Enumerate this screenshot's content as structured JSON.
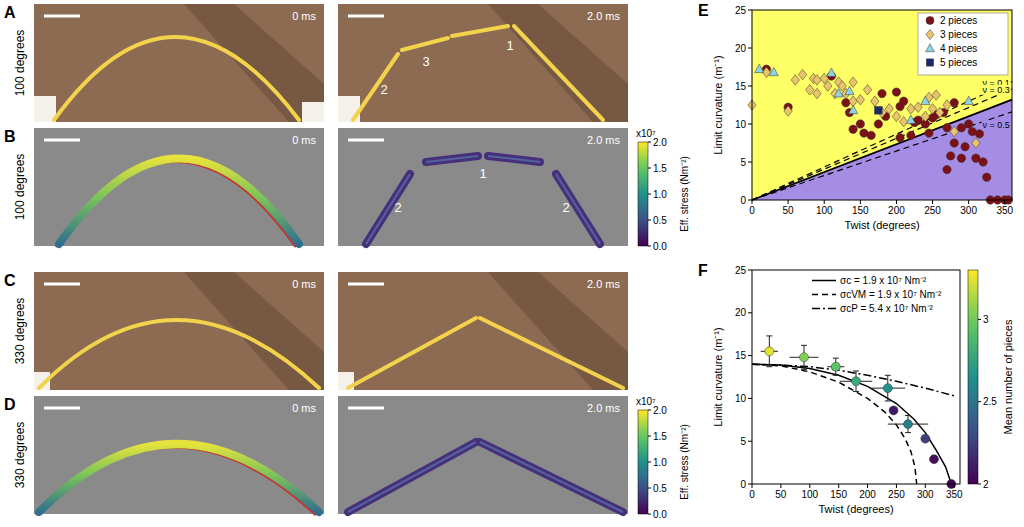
{
  "panels": [
    {
      "letter": "A",
      "row_label": "100 degrees",
      "frames": [
        {
          "time": "0 ms"
        },
        {
          "time": "2.0 ms",
          "labels": [
            "2",
            "3",
            "1"
          ]
        }
      ]
    },
    {
      "letter": "B",
      "row_label": "100 degrees",
      "frames": [
        {
          "time": "0 ms"
        },
        {
          "time": "2.0 ms",
          "labels": [
            "2",
            "1",
            "2"
          ]
        }
      ]
    },
    {
      "letter": "C",
      "row_label": "330 degrees",
      "frames": [
        {
          "time": "0 ms"
        },
        {
          "time": "2.0 ms"
        }
      ]
    },
    {
      "letter": "D",
      "row_label": "330 degrees",
      "frames": [
        {
          "time": "0 ms"
        },
        {
          "time": "2.0 ms"
        }
      ]
    }
  ],
  "stress_colorbar": {
    "label": "Eff. stress (Nm⁻²)",
    "multiplier": "x10⁷",
    "range": [
      0,
      2
    ],
    "ticks": [
      {
        "value": 0,
        "label": "0.0"
      },
      0.5,
      {
        "value": 1,
        "label": "1.0"
      },
      1.5,
      {
        "value": 2,
        "label": "2.0"
      }
    ]
  },
  "chart_data": [
    {
      "type": "scatter",
      "letter": "E",
      "x_label": "Twist (degrees)",
      "y_label": "Limit curvature (m⁻¹)",
      "xlim": [
        0,
        360
      ],
      "ylim": [
        0,
        25
      ],
      "xticks": [
        0,
        50,
        100,
        150,
        200,
        250,
        300,
        350
      ],
      "yticks": [
        0,
        5,
        10,
        15,
        20,
        25
      ],
      "legend": "upper right",
      "series": [
        {
          "name": "2 pieces",
          "color": "#7b1016",
          "marker": "circle",
          "x": [
            20,
            50,
            110,
            130,
            135,
            140,
            150,
            155,
            165,
            175,
            180,
            185,
            200,
            205,
            205,
            210,
            220,
            225,
            230,
            240,
            245,
            250,
            255,
            265,
            270,
            270,
            275,
            280,
            280,
            290,
            290,
            295,
            300,
            305,
            310,
            315,
            320,
            325,
            330,
            340,
            350,
            355
          ],
          "values": [
            17.2,
            12.2,
            16.3,
            12.8,
            11.5,
            9.3,
            10,
            8.8,
            8.5,
            10,
            14,
            11,
            14.2,
            12.3,
            8.2,
            13,
            8.5,
            10.2,
            10.5,
            10,
            8.8,
            10.8,
            11.2,
            11.5,
            9.5,
            4,
            5.8,
            12.8,
            7.5,
            9.5,
            5.5,
            7,
            10,
            9,
            5.5,
            8.7,
            5,
            3,
            0,
            0,
            0,
            0
          ]
        },
        {
          "name": "3 pieces",
          "color": "#e9c46a",
          "marker": "diamond",
          "x": [
            0,
            20,
            50,
            60,
            70,
            80,
            85,
            90,
            90,
            100,
            105,
            115,
            120,
            125,
            130,
            140,
            140,
            150,
            160,
            170,
            180,
            190,
            200,
            210,
            220,
            230,
            240,
            245,
            250,
            255,
            260,
            270,
            280,
            310
          ],
          "values": [
            12.5,
            16.8,
            11.7,
            15.8,
            16.5,
            14.5,
            16,
            15.8,
            14,
            16,
            15,
            14,
            15.5,
            15,
            14,
            15.5,
            13,
            13.2,
            14.5,
            13,
            11.5,
            12,
            11,
            10.3,
            12,
            12.2,
            11,
            13.5,
            12,
            13.8,
            11.5,
            12.5,
            9,
            7.5
          ]
        },
        {
          "name": "4 pieces",
          "color": "#8fd3e3",
          "marker": "triangle",
          "x": [
            10,
            30,
            110,
            120,
            135,
            140,
            220,
            240,
            300
          ],
          "values": [
            17.2,
            16.8,
            16.7,
            14,
            14.3,
            11.8,
            10.5,
            13,
            13
          ]
        },
        {
          "name": "5 pieces",
          "color": "#1b2a6b",
          "marker": "square",
          "x": [
            175
          ],
          "values": [
            11.8
          ]
        }
      ],
      "lines": [
        {
          "label": "ν = 0.1",
          "line_style": "dashed",
          "x": [
            0,
            360
          ],
          "values": [
            0,
            15.6
          ]
        },
        {
          "label": "ν = 0.3",
          "line_style": "dashed",
          "x": [
            0,
            360
          ],
          "values": [
            0,
            14.6
          ]
        },
        {
          "line_style": "solid",
          "x": [
            0,
            360
          ],
          "values": [
            0,
            13.2
          ]
        },
        {
          "label": "ν = 0.5",
          "line_style": "dashed",
          "x": [
            0,
            360
          ],
          "values": [
            0,
            11.6
          ]
        }
      ]
    },
    {
      "type": "line",
      "letter": "F",
      "x_label": "Twist (degrees)",
      "y_label": "Limit curvature (m⁻¹)",
      "xlim": [
        0,
        360
      ],
      "ylim": [
        0,
        25
      ],
      "xticks": [
        0,
        50,
        100,
        150,
        200,
        250,
        300,
        350
      ],
      "yticks": [
        0,
        5,
        10,
        15,
        20,
        25
      ],
      "legend": "upper right",
      "series": [
        {
          "name": "σc = 1.9 x 10⁷ Nm⁻²",
          "line_style": "solid",
          "color": "#000000",
          "x": [
            0,
            50,
            100,
            150,
            200,
            250,
            280,
            300,
            320,
            335,
            345
          ],
          "values": [
            14,
            13.9,
            13.5,
            12.7,
            11.4,
            9.4,
            7.6,
            6,
            3.8,
            2,
            0
          ]
        },
        {
          "name": "σcVM = 1.9 x 10⁷ Nm⁻²",
          "line_style": "dashed",
          "color": "#000000",
          "x": [
            0,
            50,
            100,
            150,
            200,
            230,
            250,
            265,
            275,
            282,
            285
          ],
          "values": [
            14,
            13.8,
            13.1,
            11.9,
            10,
            8.4,
            6.9,
            5.3,
            3.8,
            2,
            0
          ]
        },
        {
          "name": "σcP = 5.4 x 10⁷ Nm⁻²",
          "line_style": "dashdot",
          "color": "#000000",
          "x": [
            0,
            50,
            100,
            150,
            200,
            250,
            300,
            350
          ],
          "values": [
            14,
            13.9,
            13.7,
            13.3,
            12.7,
            12,
            11.2,
            10.3
          ]
        },
        {
          "type": "scatter",
          "marker": "circle",
          "x": [
            30,
            90,
            145,
            180,
            235,
            245,
            270,
            300,
            315,
            345
          ],
          "values": [
            15.5,
            14.8,
            13.7,
            12,
            11.2,
            8.6,
            7,
            5.3,
            2.9,
            0
          ],
          "xerr": [
            15,
            25,
            15,
            28,
            30,
            0,
            35,
            0,
            0,
            0
          ],
          "yerr": [
            1.8,
            1.4,
            1,
            1.2,
            1.5,
            0,
            1,
            0,
            0,
            0
          ],
          "mean_pieces": [
            3.25,
            3.05,
            2.95,
            2.8,
            2.65,
            2.1,
            2.55,
            2.25,
            2.05,
            2
          ]
        }
      ],
      "colorbar": {
        "label": "Mean number of pieces",
        "range": [
          2,
          3.3
        ],
        "ticks": [
          2,
          2.5,
          3
        ]
      }
    }
  ]
}
